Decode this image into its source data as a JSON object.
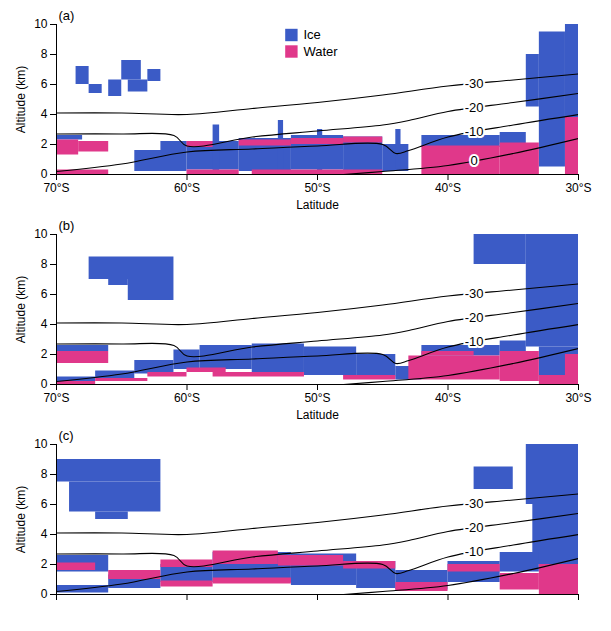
{
  "chart_data": [
    {
      "type": "heatmap",
      "title": "(a)",
      "x_label": "Latitude",
      "y_label": "Altitude (km)",
      "xlim": [
        -70,
        -30
      ],
      "xticks": [
        {
          "value": -70,
          "label": "70°S"
        },
        {
          "value": -60,
          "label": "60°S"
        },
        {
          "value": -50,
          "label": "50°S"
        },
        {
          "value": -40,
          "label": "40°S"
        },
        {
          "value": -30,
          "label": "30°S"
        }
      ],
      "ylim": [
        0,
        10
      ],
      "yticks": [
        0,
        2,
        4,
        6,
        8,
        10
      ],
      "legend": "top",
      "series": [
        {
          "name": "Ice",
          "color": "#3b5bc6",
          "cells": [
            [
              -68.5,
              -67.5,
              6.0,
              7.2
            ],
            [
              -67.5,
              -66.5,
              5.4,
              6.0
            ],
            [
              -66,
              -65,
              5.2,
              6.3
            ],
            [
              -65,
              -63.5,
              6.3,
              7.6
            ],
            [
              -64.5,
              -63,
              5.5,
              6.3
            ],
            [
              -63,
              -62,
              6.2,
              7.0
            ],
            [
              -70,
              -68,
              2.3,
              2.6
            ],
            [
              -64,
              -60,
              0.2,
              1.6
            ],
            [
              -62,
              -60,
              1.6,
              2.2
            ],
            [
              -60,
              -56,
              0.3,
              2.2
            ],
            [
              -56,
              -52,
              0.2,
              2.4
            ],
            [
              -52,
              -48,
              0.3,
              2.6
            ],
            [
              -48,
              -45,
              0.2,
              2.5
            ],
            [
              -45,
              -43,
              0.2,
              2.0
            ],
            [
              -42,
              -36,
              1.8,
              2.6
            ],
            [
              -36,
              -34,
              2.0,
              2.8
            ],
            [
              -33,
              -31,
              0.5,
              9.5
            ],
            [
              -31,
              -30,
              3.5,
              10
            ],
            [
              -34,
              -33,
              4.5,
              8.0
            ],
            [
              -58,
              -57.5,
              0.2,
              3.3
            ],
            [
              -53,
              -52.6,
              0.2,
              3.6
            ],
            [
              -50,
              -49.6,
              0.2,
              3.0
            ],
            [
              -44,
              -43.6,
              0.2,
              3.0
            ]
          ]
        },
        {
          "name": "Water",
          "color": "#e0388a",
          "cells": [
            [
              -70,
              -68.3,
              1.3,
              2.3
            ],
            [
              -68.3,
              -66,
              1.5,
              2.2
            ],
            [
              -70,
              -66,
              0.0,
              0.3
            ],
            [
              -60,
              -56,
              0.0,
              0.3
            ],
            [
              -60,
              -58,
              1.8,
              2.2
            ],
            [
              -56,
              -52,
              1.9,
              2.3
            ],
            [
              -52,
              -48,
              2.0,
              2.4
            ],
            [
              -48,
              -45,
              2.1,
              2.5
            ],
            [
              -55,
              -45,
              0.0,
              0.3
            ],
            [
              -42,
              -36,
              0.0,
              1.9
            ],
            [
              -36,
              -33,
              0.0,
              2.1
            ],
            [
              -31,
              -30,
              0.0,
              3.8
            ]
          ]
        }
      ],
      "contours": [
        {
          "level": -30,
          "x": [
            -70,
            -65,
            -60,
            -55,
            -50,
            -45,
            -40,
            -35,
            -30
          ],
          "y": [
            4.1,
            4.1,
            4.0,
            4.4,
            4.8,
            5.3,
            5.9,
            6.3,
            6.7
          ]
        },
        {
          "level": -20,
          "x": [
            -70,
            -65,
            -61,
            -60,
            -55,
            -50,
            -45,
            -43,
            -40,
            -35,
            -30
          ],
          "y": [
            2.7,
            2.7,
            2.6,
            1.9,
            2.5,
            2.9,
            3.3,
            3.6,
            4.2,
            4.8,
            5.4
          ]
        },
        {
          "level": -10,
          "x": [
            -70,
            -65,
            -60,
            -55,
            -50,
            -45,
            -44,
            -43,
            -40,
            -35,
            -30
          ],
          "y": [
            0.2,
            0.7,
            1.5,
            1.7,
            1.9,
            2.0,
            1.4,
            1.6,
            2.5,
            3.3,
            4.0
          ]
        },
        {
          "level": 0,
          "x": [
            -48,
            -45,
            -40,
            -35,
            -30
          ],
          "y": [
            0.0,
            0.2,
            0.6,
            1.4,
            2.4
          ]
        }
      ],
      "contour_labels": [
        -30,
        -20,
        -10,
        0
      ]
    },
    {
      "type": "heatmap",
      "title": "(b)",
      "x_label": "Latitude",
      "y_label": "Altitude (km)",
      "xlim": [
        -70,
        -30
      ],
      "xticks": [
        {
          "value": -70,
          "label": "70°S"
        },
        {
          "value": -60,
          "label": "60°S"
        },
        {
          "value": -50,
          "label": "50°S"
        },
        {
          "value": -40,
          "label": "40°S"
        },
        {
          "value": -30,
          "label": "30°S"
        }
      ],
      "ylim": [
        0,
        10
      ],
      "yticks": [
        0,
        2,
        4,
        6,
        8,
        10
      ],
      "series": [
        {
          "name": "Ice",
          "color": "#3b5bc6",
          "cells": [
            [
              -67.5,
              -61,
              7.0,
              8.5
            ],
            [
              -64.5,
              -61,
              5.6,
              7.0
            ],
            [
              -66,
              -64.5,
              6.6,
              7.0
            ],
            [
              -70,
              -66,
              2.2,
              2.6
            ],
            [
              -70,
              -67,
              0.2,
              0.5
            ],
            [
              -67,
              -64,
              0.4,
              0.9
            ],
            [
              -64,
              -61,
              0.7,
              1.6
            ],
            [
              -61,
              -59,
              1.0,
              2.3
            ],
            [
              -59,
              -55,
              1.0,
              2.6
            ],
            [
              -55,
              -51,
              0.8,
              2.7
            ],
            [
              -51,
              -47,
              0.6,
              2.5
            ],
            [
              -47,
              -44,
              0.5,
              2.0
            ],
            [
              -44,
              -42,
              0.3,
              1.2
            ],
            [
              -42,
              -36,
              1.9,
              2.6
            ],
            [
              -36,
              -34,
              2.1,
              2.9
            ],
            [
              -34,
              -30,
              2.5,
              10
            ],
            [
              -38,
              -34,
              8.0,
              10
            ],
            [
              -33,
              -30,
              0.5,
              2.5
            ]
          ]
        },
        {
          "name": "Water",
          "color": "#e0388a",
          "cells": [
            [
              -70,
              -66,
              1.4,
              2.2
            ],
            [
              -70,
              -67,
              0.0,
              0.2
            ],
            [
              -67,
              -63,
              0.2,
              0.4
            ],
            [
              -63,
              -60,
              0.5,
              0.8
            ],
            [
              -60,
              -57,
              0.8,
              1.1
            ],
            [
              -58,
              -51,
              0.5,
              0.8
            ],
            [
              -48,
              -44,
              0.3,
              0.6
            ],
            [
              -43,
              -36,
              0.3,
              1.9
            ],
            [
              -42,
              -38,
              1.9,
              2.2
            ],
            [
              -36,
              -33,
              0.2,
              2.2
            ],
            [
              -33,
              -30,
              0.0,
              0.6
            ],
            [
              -31,
              -30,
              0.6,
              2.0
            ]
          ]
        }
      ],
      "contours": [
        {
          "level": -30,
          "x": [
            -70,
            -65,
            -60,
            -55,
            -50,
            -45,
            -40,
            -35,
            -30
          ],
          "y": [
            4.1,
            4.1,
            4.0,
            4.4,
            4.8,
            5.3,
            5.9,
            6.3,
            6.7
          ]
        },
        {
          "level": -20,
          "x": [
            -70,
            -65,
            -61,
            -60,
            -55,
            -50,
            -45,
            -43,
            -40,
            -35,
            -30
          ],
          "y": [
            2.7,
            2.7,
            2.6,
            1.9,
            2.5,
            2.9,
            3.3,
            3.6,
            4.2,
            4.8,
            5.4
          ]
        },
        {
          "level": -10,
          "x": [
            -70,
            -65,
            -60,
            -55,
            -50,
            -45,
            -44,
            -43,
            -40,
            -35,
            -30
          ],
          "y": [
            0.2,
            0.7,
            1.5,
            1.7,
            1.9,
            2.0,
            1.4,
            1.6,
            2.5,
            3.3,
            4.0
          ]
        },
        {
          "level": 0,
          "x": [
            -48,
            -45,
            -40,
            -35,
            -30
          ],
          "y": [
            0.0,
            0.2,
            0.6,
            1.4,
            2.4
          ]
        }
      ],
      "contour_labels": [
        -30,
        -20,
        -10
      ]
    },
    {
      "type": "heatmap",
      "title": "(c)",
      "y_label": "Altitude (km)",
      "tick_labels": "y",
      "xlim": [
        -70,
        -30
      ],
      "xticks": [
        -70,
        -60,
        -50,
        -40,
        -30
      ],
      "ylim": [
        0,
        10
      ],
      "yticks": [
        0,
        2,
        4,
        6,
        8,
        10
      ],
      "series": [
        {
          "name": "Ice",
          "color": "#3b5bc6",
          "cells": [
            [
              -70,
              -62,
              7.5,
              9.0
            ],
            [
              -69,
              -62,
              5.5,
              7.5
            ],
            [
              -67,
              -64.5,
              5.0,
              5.5
            ],
            [
              -38,
              -35,
              7.0,
              8.5
            ],
            [
              -34,
              -30,
              6.0,
              10
            ],
            [
              -33.5,
              -30,
              2.0,
              6.0
            ],
            [
              -70,
              -66,
              1.5,
              2.6
            ],
            [
              -70,
              -66,
              0.1,
              0.6
            ],
            [
              -66,
              -62,
              0.4,
              1.3
            ],
            [
              -62,
              -58,
              0.8,
              2.0
            ],
            [
              -58,
              -52,
              0.8,
              2.8
            ],
            [
              -52,
              -47,
              0.6,
              2.7
            ],
            [
              -47,
              -44,
              0.4,
              2.2
            ],
            [
              -44,
              -40,
              0.3,
              1.6
            ],
            [
              -40,
              -36,
              0.8,
              2.2
            ],
            [
              -36,
              -33,
              1.5,
              2.8
            ]
          ]
        },
        {
          "name": "Water",
          "color": "#e0388a",
          "cells": [
            [
              -70,
              -67,
              1.6,
              2.1
            ],
            [
              -66,
              -62,
              1.0,
              1.6
            ],
            [
              -62,
              -58,
              1.8,
              2.3
            ],
            [
              -58,
              -53,
              2.0,
              2.9
            ],
            [
              -53,
              -48,
              1.9,
              2.6
            ],
            [
              -58,
              -52,
              0.7,
              1.1
            ],
            [
              -48,
              -44,
              1.7,
              2.2
            ],
            [
              -44,
              -40,
              0.2,
              0.8
            ],
            [
              -40,
              -36,
              1.5,
              2.0
            ],
            [
              -36,
              -33,
              0.3,
              1.4
            ],
            [
              -33,
              -30,
              0.0,
              2.0
            ],
            [
              -62,
              -58,
              0.5,
              0.9
            ]
          ]
        }
      ],
      "contours": [
        {
          "level": -30,
          "x": [
            -70,
            -65,
            -60,
            -55,
            -50,
            -45,
            -40,
            -35,
            -30
          ],
          "y": [
            4.1,
            4.1,
            4.0,
            4.4,
            4.8,
            5.3,
            5.9,
            6.3,
            6.7
          ]
        },
        {
          "level": -20,
          "x": [
            -70,
            -65,
            -61,
            -60,
            -55,
            -50,
            -45,
            -43,
            -40,
            -35,
            -30
          ],
          "y": [
            2.7,
            2.7,
            2.6,
            1.9,
            2.5,
            2.9,
            3.3,
            3.6,
            4.2,
            4.8,
            5.4
          ]
        },
        {
          "level": -10,
          "x": [
            -70,
            -65,
            -60,
            -55,
            -50,
            -45,
            -44,
            -43,
            -40,
            -35,
            -30
          ],
          "y": [
            0.2,
            0.7,
            1.5,
            1.7,
            1.9,
            2.0,
            1.4,
            1.6,
            2.5,
            3.3,
            4.0
          ]
        },
        {
          "level": 0,
          "x": [
            -48,
            -45,
            -40,
            -35,
            -30
          ],
          "y": [
            0.0,
            0.2,
            0.6,
            1.4,
            2.4
          ]
        }
      ],
      "contour_labels": [
        -30,
        -20,
        -10
      ]
    }
  ]
}
